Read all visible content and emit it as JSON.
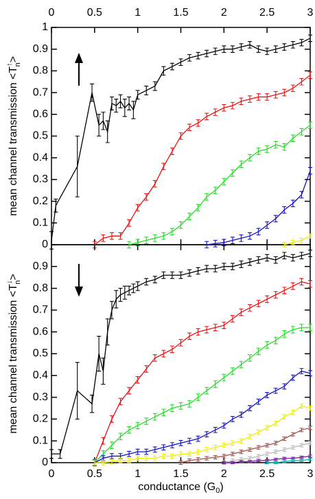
{
  "chart_data": [
    {
      "type": "line",
      "xlim": [
        0,
        3
      ],
      "ylim": [
        0,
        1
      ],
      "xticks": [
        0,
        0.5,
        1,
        1.5,
        2,
        2.5,
        3
      ],
      "yticks": [
        0,
        0.1,
        0.2,
        0.3,
        0.4,
        0.5,
        0.6,
        0.7,
        0.8,
        0.9,
        1
      ],
      "ylabel": {
        "text": "mean channel transmission <T",
        "sub": "n",
        "sup": "↑",
        "close": ">"
      },
      "series": [
        {
          "color": "#000000",
          "x": [
            0,
            0.05,
            0.3,
            0.47,
            0.55,
            0.6,
            0.65,
            0.7,
            0.75,
            0.8,
            0.85,
            0.9,
            0.95,
            1.0,
            1.1,
            1.2,
            1.3,
            1.4,
            1.5,
            1.6,
            1.7,
            1.8,
            1.9,
            2.0,
            2.1,
            2.2,
            2.3,
            2.4,
            2.5,
            2.6,
            2.7,
            2.8,
            2.9,
            3.0
          ],
          "values": [
            0.02,
            0.18,
            0.36,
            0.7,
            0.55,
            0.57,
            0.52,
            0.65,
            0.64,
            0.66,
            0.63,
            0.65,
            0.62,
            0.69,
            0.71,
            0.73,
            0.8,
            0.82,
            0.84,
            0.86,
            0.87,
            0.88,
            0.89,
            0.9,
            0.9,
            0.91,
            0.92,
            0.9,
            0.89,
            0.9,
            0.91,
            0.92,
            0.93,
            0.95
          ],
          "errors": [
            0.04,
            0.03,
            0.14,
            0.04,
            0.05,
            0.04,
            0.05,
            0.03,
            0.03,
            0.03,
            0.04,
            0.03,
            0.04,
            0.02,
            0.02,
            0.02,
            0.02,
            0.015,
            0.015,
            0.015,
            0.015,
            0.015,
            0.015,
            0.015,
            0.015,
            0.015,
            0.015,
            0.015,
            0.015,
            0.015,
            0.015,
            0.015,
            0.015,
            0.015
          ]
        },
        {
          "color": "#ee1111",
          "x": [
            0.5,
            0.6,
            0.7,
            0.8,
            0.9,
            1.0,
            1.1,
            1.2,
            1.3,
            1.4,
            1.5,
            1.6,
            1.7,
            1.8,
            1.9,
            2.0,
            2.1,
            2.2,
            2.3,
            2.4,
            2.5,
            2.6,
            2.7,
            2.8,
            2.9,
            3.0
          ],
          "values": [
            0.0,
            0.03,
            0.04,
            0.04,
            0.1,
            0.17,
            0.22,
            0.28,
            0.36,
            0.43,
            0.5,
            0.54,
            0.56,
            0.59,
            0.61,
            0.63,
            0.64,
            0.66,
            0.67,
            0.68,
            0.68,
            0.69,
            0.7,
            0.72,
            0.75,
            0.78
          ],
          "errors": 0.015
        },
        {
          "color": "#22dd22",
          "x": [
            0.9,
            1.0,
            1.1,
            1.2,
            1.3,
            1.4,
            1.5,
            1.6,
            1.7,
            1.8,
            1.9,
            2.0,
            2.1,
            2.2,
            2.3,
            2.4,
            2.5,
            2.6,
            2.7,
            2.8,
            2.9,
            3.0
          ],
          "values": [
            0.0,
            0.01,
            0.02,
            0.03,
            0.04,
            0.06,
            0.09,
            0.13,
            0.17,
            0.22,
            0.25,
            0.29,
            0.33,
            0.37,
            0.4,
            0.43,
            0.44,
            0.46,
            0.45,
            0.49,
            0.52,
            0.55
          ],
          "errors": 0.015
        },
        {
          "color": "#1111cc",
          "x": [
            1.8,
            1.9,
            2.0,
            2.1,
            2.2,
            2.3,
            2.4,
            2.5,
            2.6,
            2.7,
            2.8,
            2.9,
            3.0
          ],
          "values": [
            0,
            0.005,
            0.01,
            0.02,
            0.03,
            0.04,
            0.06,
            0.09,
            0.12,
            0.16,
            0.19,
            0.23,
            0.34
          ],
          "errors": 0.015
        },
        {
          "color": "#eeee00",
          "x": [
            2.7,
            2.8,
            2.9,
            3.0
          ],
          "values": [
            0,
            0.01,
            0.02,
            0.04
          ],
          "errors": 0.01
        }
      ]
    },
    {
      "type": "line",
      "xlim": [
        0,
        3
      ],
      "ylim": [
        0,
        1
      ],
      "xticks": [
        0,
        0.5,
        1,
        1.5,
        2,
        2.5,
        3
      ],
      "yticks": [
        0,
        0.1,
        0.2,
        0.3,
        0.4,
        0.5,
        0.6,
        0.7,
        0.8,
        0.9
      ],
      "xlabel": {
        "text": "conductance (G",
        "sub": "0",
        "close": ")"
      },
      "ylabel": {
        "text": "mean channel transmission <T",
        "sub": "n",
        "sup": "↓",
        "close": ">"
      },
      "series": [
        {
          "color": "#000000",
          "x": [
            0,
            0.1,
            0.3,
            0.47,
            0.55,
            0.6,
            0.65,
            0.7,
            0.75,
            0.8,
            0.85,
            0.9,
            0.95,
            1.0,
            1.1,
            1.2,
            1.3,
            1.4,
            1.5,
            1.6,
            1.7,
            1.8,
            1.9,
            2.0,
            2.1,
            2.2,
            2.3,
            2.4,
            2.5,
            2.6,
            2.7,
            2.8,
            2.9,
            3.0
          ],
          "values": [
            0.04,
            0.04,
            0.33,
            0.27,
            0.5,
            0.42,
            0.6,
            0.7,
            0.75,
            0.77,
            0.78,
            0.79,
            0.8,
            0.81,
            0.83,
            0.84,
            0.86,
            0.86,
            0.86,
            0.87,
            0.88,
            0.89,
            0.89,
            0.9,
            0.9,
            0.91,
            0.92,
            0.93,
            0.94,
            0.93,
            0.95,
            0.94,
            0.95,
            0.96
          ],
          "errors": [
            0.02,
            0.02,
            0.13,
            0.04,
            0.08,
            0.06,
            0.06,
            0.04,
            0.04,
            0.03,
            0.03,
            0.02,
            0.02,
            0.02,
            0.015,
            0.015,
            0.015,
            0.015,
            0.015,
            0.015,
            0.015,
            0.015,
            0.015,
            0.015,
            0.015,
            0.015,
            0.015,
            0.015,
            0.015,
            0.015,
            0.015,
            0.015,
            0.015,
            0.015
          ]
        },
        {
          "color": "#ee1111",
          "x": [
            0.5,
            0.6,
            0.7,
            0.8,
            0.9,
            1.0,
            1.1,
            1.2,
            1.3,
            1.4,
            1.5,
            1.6,
            1.7,
            1.8,
            1.9,
            2.0,
            2.1,
            2.2,
            2.3,
            2.4,
            2.5,
            2.6,
            2.7,
            2.8,
            2.9,
            3.0
          ],
          "values": [
            0.0,
            0.1,
            0.2,
            0.28,
            0.33,
            0.38,
            0.43,
            0.48,
            0.5,
            0.52,
            0.55,
            0.58,
            0.6,
            0.61,
            0.62,
            0.63,
            0.66,
            0.69,
            0.71,
            0.73,
            0.75,
            0.77,
            0.79,
            0.81,
            0.83,
            0.82
          ],
          "errors": 0.015
        },
        {
          "color": "#22dd22",
          "x": [
            0.5,
            0.6,
            0.7,
            0.8,
            0.9,
            1.0,
            1.1,
            1.2,
            1.3,
            1.4,
            1.5,
            1.6,
            1.7,
            1.8,
            1.9,
            2.0,
            2.1,
            2.2,
            2.3,
            2.4,
            2.5,
            2.6,
            2.7,
            2.8,
            2.9,
            3.0
          ],
          "values": [
            0.0,
            0.04,
            0.08,
            0.12,
            0.15,
            0.17,
            0.19,
            0.21,
            0.23,
            0.25,
            0.26,
            0.27,
            0.3,
            0.33,
            0.36,
            0.39,
            0.42,
            0.45,
            0.48,
            0.51,
            0.54,
            0.56,
            0.59,
            0.61,
            0.62,
            0.62
          ],
          "errors": 0.015
        },
        {
          "color": "#1111cc",
          "x": [
            0.5,
            0.6,
            0.7,
            0.8,
            0.9,
            1.0,
            1.1,
            1.2,
            1.3,
            1.4,
            1.5,
            1.6,
            1.7,
            1.8,
            1.9,
            2.0,
            2.1,
            2.2,
            2.3,
            2.4,
            2.5,
            2.6,
            2.7,
            2.8,
            2.9,
            3.0
          ],
          "values": [
            0,
            0.02,
            0.03,
            0.03,
            0.04,
            0.05,
            0.05,
            0.06,
            0.07,
            0.08,
            0.09,
            0.1,
            0.11,
            0.13,
            0.15,
            0.17,
            0.2,
            0.22,
            0.25,
            0.28,
            0.31,
            0.33,
            0.35,
            0.39,
            0.42,
            0.41
          ],
          "errors": 0.012
        },
        {
          "color": "#eeee00",
          "x": [
            0.5,
            0.6,
            0.7,
            0.8,
            0.9,
            1.0,
            1.1,
            1.2,
            1.3,
            1.4,
            1.5,
            1.6,
            1.7,
            1.8,
            1.9,
            2.0,
            2.1,
            2.2,
            2.3,
            2.4,
            2.5,
            2.6,
            2.7,
            2.8,
            2.9,
            3.0
          ],
          "values": [
            0,
            0,
            0.005,
            0.01,
            0.01,
            0.02,
            0.02,
            0.02,
            0.03,
            0.03,
            0.04,
            0.04,
            0.05,
            0.06,
            0.07,
            0.08,
            0.09,
            0.1,
            0.12,
            0.14,
            0.16,
            0.18,
            0.21,
            0.23,
            0.26,
            0.25
          ],
          "errors": 0.01
        },
        {
          "color": "#a0524d",
          "x": [
            1.5,
            1.6,
            1.7,
            1.8,
            1.9,
            2.0,
            2.1,
            2.2,
            2.3,
            2.4,
            2.5,
            2.6,
            2.7,
            2.8,
            2.9,
            3.0
          ],
          "values": [
            0,
            0.01,
            0.015,
            0.02,
            0.025,
            0.03,
            0.04,
            0.05,
            0.06,
            0.07,
            0.08,
            0.09,
            0.11,
            0.13,
            0.15,
            0.16
          ],
          "errors": 0.008
        },
        {
          "color": "#bbbbbb",
          "x": [
            2.0,
            2.1,
            2.2,
            2.3,
            2.4,
            2.5,
            2.6,
            2.7,
            2.8,
            2.9,
            3.0
          ],
          "values": [
            0,
            0.01,
            0.015,
            0.02,
            0.03,
            0.04,
            0.05,
            0.06,
            0.07,
            0.08,
            0.09
          ],
          "errors": 0.008
        },
        {
          "color": "#7a1fa0",
          "x": [
            2.0,
            2.1,
            2.2,
            2.3,
            2.4,
            2.5,
            2.6,
            2.7,
            2.8,
            2.9,
            3.0
          ],
          "values": [
            0,
            0,
            0.005,
            0.005,
            0.01,
            0.01,
            0.015,
            0.02,
            0.02,
            0.025,
            0.03
          ],
          "errors": 0.005
        },
        {
          "color": "#00bbbb",
          "x": [
            2.5,
            2.6,
            2.7,
            2.8,
            2.9,
            3.0
          ],
          "values": [
            0,
            0,
            0.005,
            0.01,
            0.01,
            0.015
          ],
          "errors": 0.005
        }
      ]
    }
  ]
}
